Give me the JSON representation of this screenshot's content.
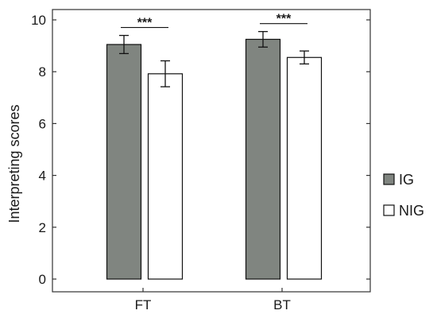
{
  "chart_data": {
    "type": "bar",
    "title": "",
    "xlabel": "",
    "ylabel": "Interpreting scores",
    "ylim": [
      0,
      10
    ],
    "yticks": [
      "0",
      "2",
      "4",
      "6",
      "8",
      "10"
    ],
    "categories": [
      "FT",
      "BT"
    ],
    "series": [
      {
        "name": "IG",
        "color": "#808580",
        "values": [
          9.05,
          9.25
        ],
        "errors": [
          0.35,
          0.3
        ]
      },
      {
        "name": "NIG",
        "color": "#ffffff",
        "values": [
          7.92,
          8.55
        ],
        "errors": [
          0.5,
          0.25
        ]
      }
    ],
    "annotations": [
      {
        "category": "FT",
        "label": "***"
      },
      {
        "category": "BT",
        "label": "***"
      }
    ],
    "grid": false,
    "legend_position": "right"
  }
}
